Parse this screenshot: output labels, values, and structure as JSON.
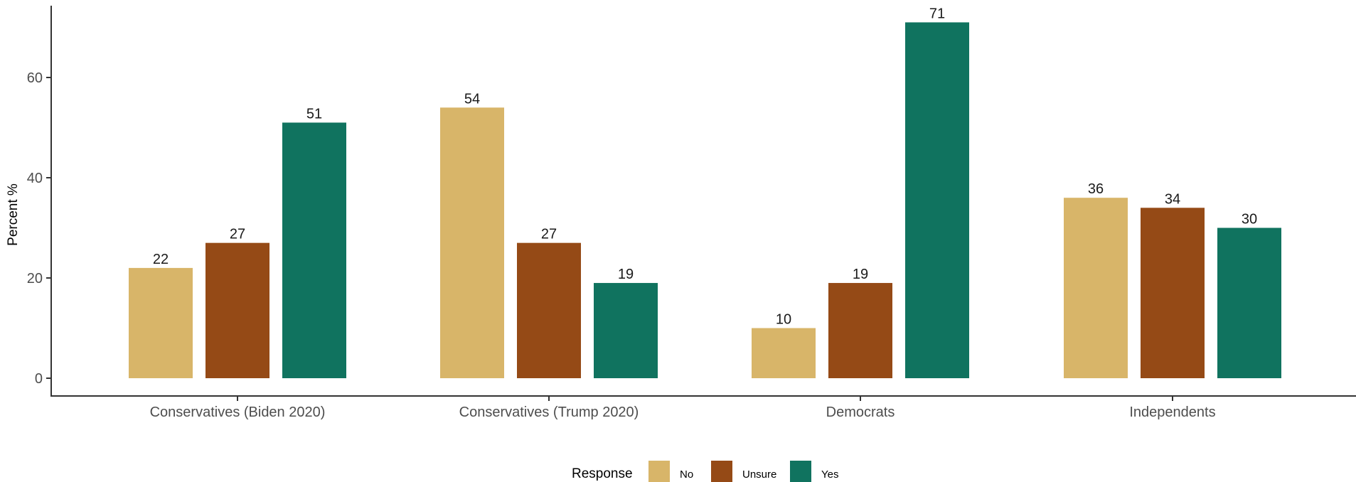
{
  "chart_data": {
    "type": "bar",
    "title": "",
    "xlabel": "",
    "ylabel": "Percent %",
    "ylim": [
      0,
      74
    ],
    "yticks": [
      0,
      20,
      40,
      60
    ],
    "grid": false,
    "legend_position": "bottom",
    "legend_title": "Response",
    "categories": [
      "Conservatives (Biden 2020)",
      "Conservatives (Trump 2020)",
      "Democrats",
      "Independents"
    ],
    "series": [
      {
        "name": "No",
        "color": "#d8b569",
        "values": [
          22,
          54,
          10,
          36
        ]
      },
      {
        "name": "Unsure",
        "color": "#954a16",
        "values": [
          27,
          27,
          19,
          34
        ]
      },
      {
        "name": "Yes",
        "color": "#10735f",
        "values": [
          51,
          19,
          71,
          30
        ]
      }
    ]
  }
}
